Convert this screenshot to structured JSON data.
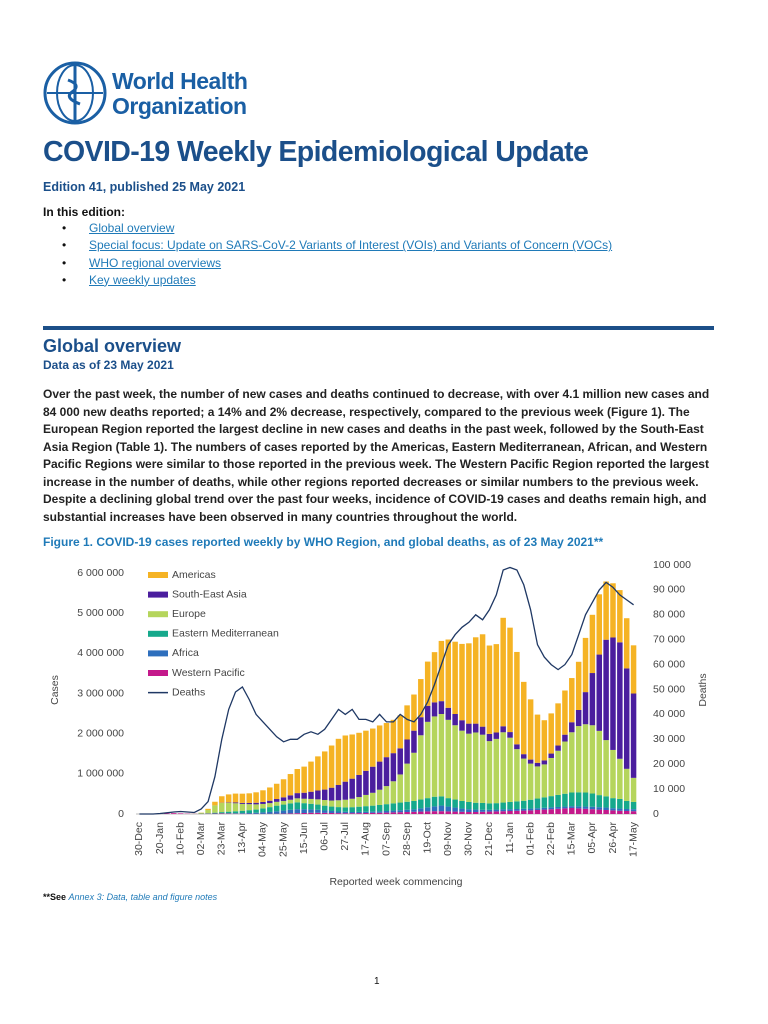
{
  "logo": {
    "line1": "World Health",
    "line2": "Organization"
  },
  "header": {
    "title": "COVID-19 Weekly Epidemiological Update",
    "edition": "Edition 41, published 25 May 2021"
  },
  "contents": {
    "label": "In this edition:",
    "items": [
      "Global overview",
      "Special focus: Update on SARS-CoV-2 Variants of Interest (VOIs) and Variants of Concern (VOCs)",
      "WHO regional overviews",
      "Key weekly updates"
    ]
  },
  "section": {
    "title": "Global overview",
    "date": "Data as of 23 May 2021",
    "paragraph": "Over the past week, the number of new cases and deaths continued to decrease, with over 4.1 million new cases and 84 000 new deaths reported; a 14% and 2% decrease, respectively, compared to the previous week (Figure 1). The European Region reported the largest decline in new cases and deaths in the past week, followed by the South-East Asia Region (Table 1). The numbers of cases reported by the Americas, Eastern Mediterranean, African, and Western Pacific Regions were similar to those reported in the previous week. The Western Pacific Region reported the largest increase in the number of deaths, while other regions reported decreases or similar numbers to the previous week. Despite a declining global trend over the past four weeks, incidence of COVID-19 cases and deaths remain high, and substantial increases have been observed in many countries throughout the world."
  },
  "chart_data": {
    "type": "stacked_bar_line",
    "title": "Figure 1. COVID-19 cases reported weekly by WHO Region, and global deaths, as of 23 May 2021**",
    "x_label": "Reported week commencing",
    "y_label": "Cases",
    "y2_label": "Deaths",
    "legend": "upper left",
    "grid": false,
    "categories": [
      "30-Dec",
      null,
      null,
      "20-Jan",
      null,
      null,
      "10-Feb",
      null,
      null,
      "02-Mar",
      null,
      null,
      "23-Mar",
      null,
      null,
      "13-Apr",
      null,
      null,
      "04-May",
      null,
      null,
      "25-May",
      null,
      null,
      "15-Jun",
      null,
      null,
      "06-Jul",
      null,
      null,
      "27-Jul",
      null,
      null,
      "17-Aug",
      null,
      null,
      "07-Sep",
      null,
      null,
      "28-Sep",
      null,
      null,
      "19-Oct",
      null,
      null,
      "09-Nov",
      null,
      null,
      "30-Nov",
      null,
      null,
      "21-Dec",
      null,
      null,
      "11-Jan",
      null,
      null,
      "01-Feb",
      null,
      null,
      "22-Feb",
      null,
      null,
      "15-Mar",
      null,
      null,
      "05-Apr",
      null,
      null,
      "26-Apr",
      null,
      null,
      "17-May"
    ],
    "ylim": [
      0,
      6200000
    ],
    "yticks": [
      0,
      {
        "value": 1000000,
        "label": "1 000 000"
      },
      {
        "value": 2000000,
        "label": "2 000 000"
      },
      {
        "value": 3000000,
        "label": "3 000 000"
      },
      {
        "value": 4000000,
        "label": "4 000 000"
      },
      {
        "value": 5000000,
        "label": "5 000 000"
      },
      {
        "value": 6000000,
        "label": "6 000 000"
      }
    ],
    "y2lim": [
      0,
      100000
    ],
    "y2ticks": [
      0,
      {
        "value": 10000,
        "label": "10 000"
      },
      {
        "value": 20000,
        "label": "20 000"
      },
      {
        "value": 30000,
        "label": "30 000"
      },
      {
        "value": 40000,
        "label": "40 000"
      },
      {
        "value": 50000,
        "label": "50 000"
      },
      {
        "value": 60000,
        "label": "60 000"
      },
      {
        "value": 70000,
        "label": "70 000"
      },
      {
        "value": 80000,
        "label": "80 000"
      },
      {
        "value": 90000,
        "label": "90 000"
      },
      {
        "value": 100000,
        "label": "100 000"
      }
    ],
    "series": [
      {
        "name": "Americas",
        "color": "#f5b324",
        "values": [
          0,
          0,
          0,
          0,
          0,
          0,
          0,
          0,
          0,
          5000,
          30000,
          90000,
          160000,
          200000,
          220000,
          230000,
          240000,
          260000,
          290000,
          330000,
          380000,
          450000,
          530000,
          600000,
          650000,
          750000,
          850000,
          950000,
          1050000,
          1150000,
          1150000,
          1100000,
          1050000,
          1000000,
          950000,
          900000,
          850000,
          830000,
          820000,
          850000,
          900000,
          950000,
          1100000,
          1250000,
          1500000,
          1700000,
          1800000,
          1900000,
          2000000,
          2150000,
          2300000,
          2200000,
          2200000,
          2700000,
          2600000,
          2300000,
          1800000,
          1500000,
          1200000,
          1000000,
          1000000,
          1050000,
          1100000,
          1100000,
          1200000,
          1350000,
          1450000,
          1500000,
          1450000,
          1350000,
          1300000,
          1250000,
          1200000
        ]
      },
      {
        "name": "South-East Asia",
        "color": "#4b1e9e",
        "values": [
          0,
          0,
          0,
          0,
          0,
          0,
          0,
          0,
          0,
          0,
          0,
          2000,
          5000,
          10000,
          20000,
          25000,
          30000,
          40000,
          50000,
          60000,
          70000,
          90000,
          110000,
          130000,
          150000,
          180000,
          220000,
          260000,
          320000,
          380000,
          450000,
          500000,
          550000,
          600000,
          650000,
          700000,
          720000,
          700000,
          650000,
          600000,
          550000,
          450000,
          400000,
          350000,
          320000,
          300000,
          280000,
          260000,
          250000,
          220000,
          200000,
          180000,
          160000,
          150000,
          140000,
          120000,
          110000,
          100000,
          90000,
          100000,
          110000,
          130000,
          170000,
          250000,
          400000,
          800000,
          1300000,
          1900000,
          2500000,
          2800000,
          2900000,
          2500000,
          2100000
        ]
      },
      {
        "name": "Europe",
        "color": "#b5d55c",
        "values": [
          0,
          0,
          0,
          0,
          0,
          0,
          0,
          0,
          3000,
          20000,
          80000,
          180000,
          230000,
          220000,
          200000,
          170000,
          150000,
          130000,
          110000,
          100000,
          95000,
          90000,
          90000,
          100000,
          110000,
          120000,
          130000,
          140000,
          150000,
          170000,
          190000,
          210000,
          240000,
          280000,
          320000,
          380000,
          450000,
          550000,
          700000,
          950000,
          1200000,
          1600000,
          1900000,
          2000000,
          2050000,
          1950000,
          1850000,
          1750000,
          1700000,
          1750000,
          1700000,
          1550000,
          1600000,
          1750000,
          1600000,
          1300000,
          1050000,
          900000,
          800000,
          820000,
          950000,
          1100000,
          1300000,
          1500000,
          1650000,
          1700000,
          1700000,
          1600000,
          1400000,
          1200000,
          1000000,
          800000,
          600000
        ]
      },
      {
        "name": "Eastern Mediterranean",
        "color": "#16a98c",
        "values": [
          0,
          0,
          0,
          0,
          0,
          0,
          0,
          0,
          0,
          5000,
          10000,
          20000,
          30000,
          40000,
          50000,
          60000,
          70000,
          80000,
          100000,
          120000,
          140000,
          150000,
          160000,
          170000,
          150000,
          140000,
          130000,
          120000,
          110000,
          110000,
          110000,
          120000,
          130000,
          140000,
          150000,
          160000,
          170000,
          180000,
          190000,
          200000,
          210000,
          220000,
          230000,
          240000,
          230000,
          210000,
          200000,
          190000,
          180000,
          170000,
          170000,
          160000,
          160000,
          170000,
          180000,
          190000,
          200000,
          220000,
          240000,
          260000,
          280000,
          300000,
          320000,
          340000,
          350000,
          350000,
          330000,
          300000,
          280000,
          250000,
          240000,
          200000,
          180000
        ]
      },
      {
        "name": "Africa",
        "color": "#2e6fbd",
        "values": [
          0,
          0,
          0,
          0,
          0,
          0,
          0,
          0,
          0,
          0,
          1000,
          3000,
          5000,
          8000,
          10000,
          15000,
          20000,
          25000,
          35000,
          45000,
          60000,
          75000,
          90000,
          100000,
          95000,
          85000,
          75000,
          60000,
          50000,
          40000,
          35000,
          30000,
          30000,
          30000,
          30000,
          35000,
          40000,
          45000,
          50000,
          55000,
          60000,
          80000,
          100000,
          120000,
          140000,
          120000,
          100000,
          80000,
          70000,
          60000,
          50000,
          45000,
          45000,
          45000,
          45000,
          45000,
          45000,
          45000,
          45000,
          45000,
          45000,
          45000,
          45000,
          45000,
          50000,
          55000,
          60000,
          60000,
          60000,
          55000,
          55000,
          50000,
          50000
        ]
      },
      {
        "name": "Western Pacific",
        "color": "#c4198b",
        "values": [
          0,
          0,
          1000,
          5000,
          15000,
          20000,
          15000,
          8000,
          5000,
          5000,
          8000,
          10000,
          12000,
          10000,
          8000,
          6000,
          5000,
          5000,
          5000,
          6000,
          8000,
          10000,
          15000,
          20000,
          25000,
          30000,
          30000,
          28000,
          25000,
          22000,
          20000,
          20000,
          22000,
          25000,
          28000,
          30000,
          35000,
          40000,
          45000,
          50000,
          55000,
          60000,
          65000,
          70000,
          70000,
          65000,
          60000,
          55000,
          50000,
          50000,
          55000,
          60000,
          65000,
          70000,
          75000,
          80000,
          85000,
          90000,
          100000,
          110000,
          120000,
          130000,
          140000,
          150000,
          140000,
          130000,
          120000,
          110000,
          100000,
          90000,
          80000,
          75000,
          70000
        ]
      },
      {
        "name": "Deaths",
        "color": "#1f3864",
        "axis": "y2",
        "values": [
          0,
          0,
          0,
          200,
          500,
          800,
          1000,
          800,
          600,
          2000,
          5000,
          15000,
          30000,
          42000,
          49000,
          51000,
          46000,
          40000,
          37000,
          34000,
          31000,
          29000,
          30000,
          30000,
          32000,
          33000,
          32000,
          34000,
          38000,
          42000,
          40000,
          42000,
          38000,
          38000,
          37000,
          40000,
          37000,
          37000,
          40000,
          38000,
          37000,
          40000,
          45000,
          52000,
          60000,
          68000,
          72000,
          75000,
          77000,
          80000,
          78000,
          82000,
          88000,
          98000,
          99000,
          98000,
          92000,
          82000,
          68000,
          63000,
          60000,
          58000,
          60000,
          64000,
          72000,
          80000,
          85000,
          90000,
          93000,
          91000,
          88000,
          86000,
          84000
        ]
      }
    ]
  },
  "footnote": {
    "mark": "**See",
    "link": "Annex 3: Data, table and figure notes"
  },
  "page_number": "1"
}
